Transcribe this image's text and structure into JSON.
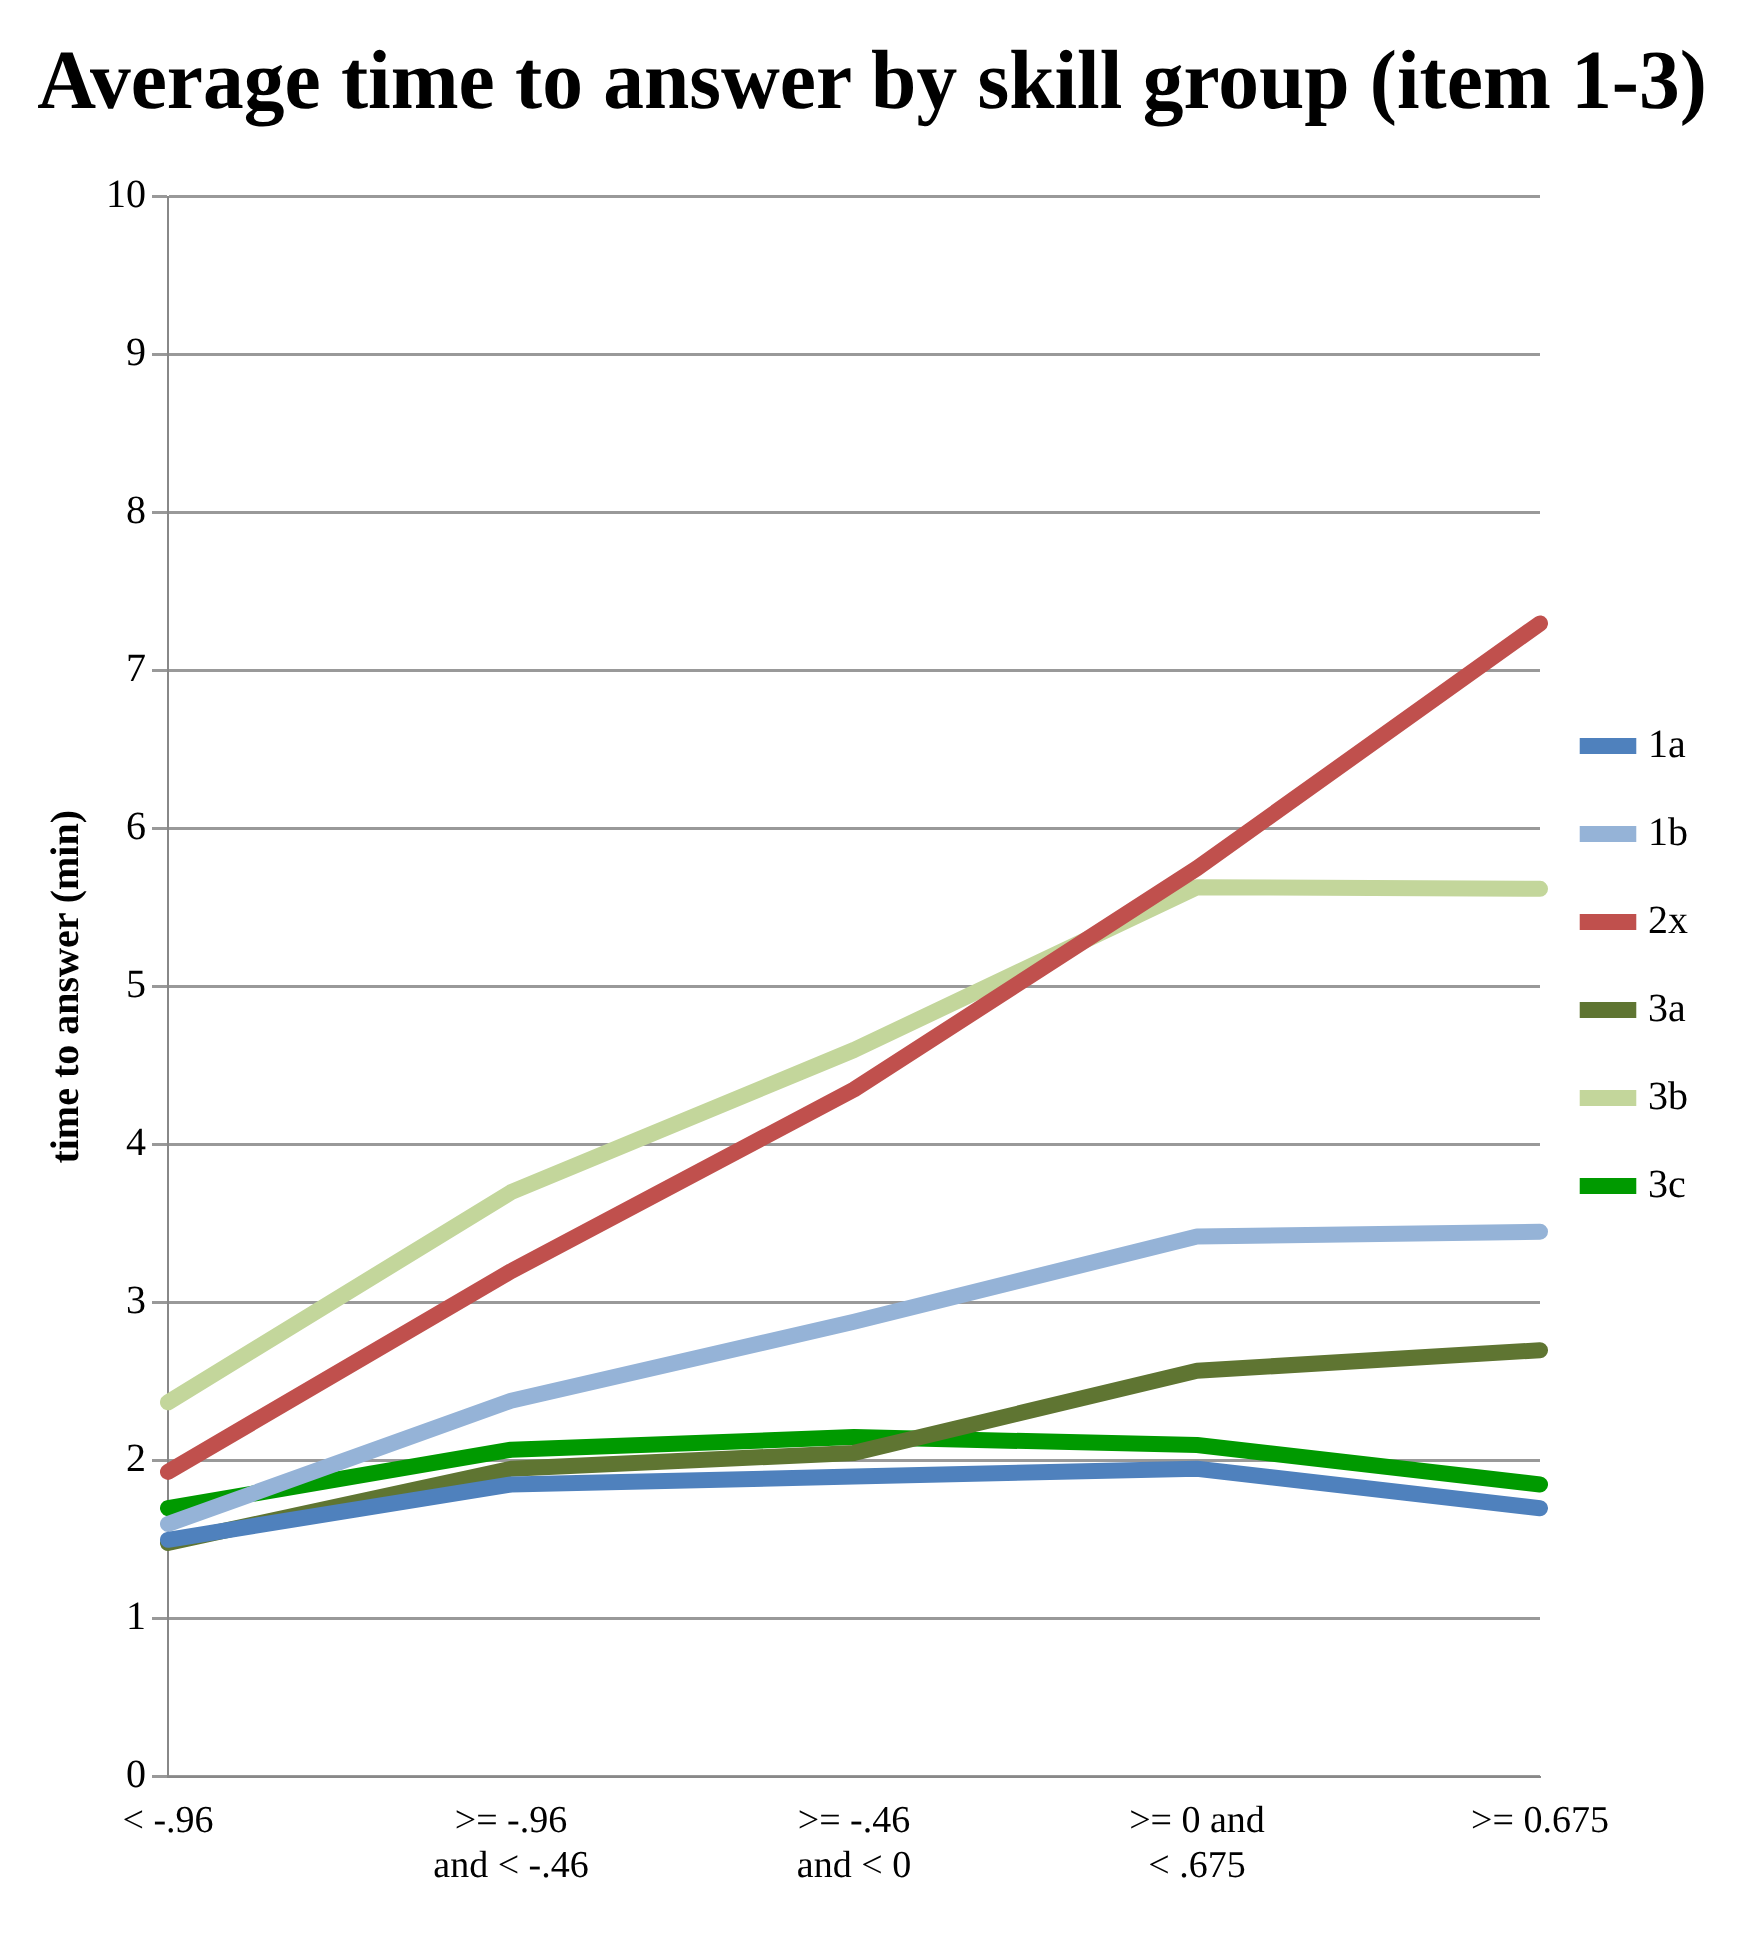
{
  "chart_data": {
    "type": "line",
    "title": "Average time to answer by skill group (item 1-3)",
    "ylabel": "time to answer (min)",
    "categories": [
      "< -.96",
      ">= -.96\nand < -.46",
      ">= -.46\nand < 0",
      ">= 0 and\n< .675",
      ">= 0.675"
    ],
    "series": [
      {
        "name": "1a",
        "color": "#4f81bd",
        "values": [
          1.5,
          1.85,
          1.9,
          1.95,
          1.7
        ]
      },
      {
        "name": "1b",
        "color": "#95b3d7",
        "values": [
          1.6,
          2.38,
          2.88,
          3.42,
          3.45
        ]
      },
      {
        "name": "2x",
        "color": "#c0504d",
        "values": [
          1.93,
          3.2,
          4.35,
          5.75,
          7.3
        ]
      },
      {
        "name": "3a",
        "color": "#5f7532",
        "values": [
          1.48,
          1.95,
          2.05,
          2.57,
          2.7
        ]
      },
      {
        "name": "3b",
        "color": "#c3d69b",
        "values": [
          2.37,
          3.7,
          4.6,
          5.63,
          5.62
        ]
      },
      {
        "name": "3c",
        "color": "#009a00",
        "values": [
          1.7,
          2.07,
          2.15,
          2.1,
          1.85
        ]
      }
    ],
    "ylim": [
      0,
      10
    ],
    "yticks": [
      0,
      1,
      2,
      3,
      4,
      5,
      6,
      7,
      8,
      9,
      10
    ],
    "grid": "y",
    "legend": "right",
    "marker": "none",
    "line_style": "solid"
  }
}
